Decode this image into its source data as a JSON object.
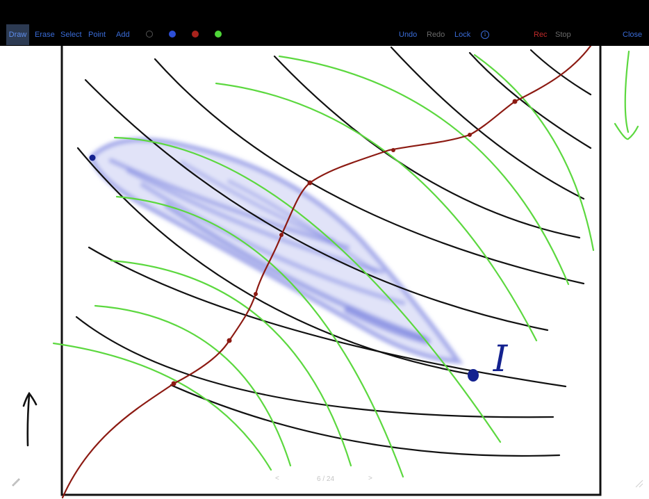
{
  "toolbar": {
    "tools": {
      "draw": "Draw",
      "erase": "Erase",
      "select": "Select",
      "point": "Point",
      "add": "Add"
    },
    "swatches": [
      {
        "name": "black",
        "color": "#111111",
        "border": "#555555"
      },
      {
        "name": "blue",
        "color": "#2d4fd6",
        "border": "#2d4fd6"
      },
      {
        "name": "red",
        "color": "#a8231c",
        "border": "#a8231c"
      },
      {
        "name": "green",
        "color": "#4fd639",
        "border": "#4fd639"
      }
    ],
    "undo": "Undo",
    "redo": "Redo",
    "lock": "Lock",
    "info_icon": "i",
    "rec": "Rec",
    "stop": "Stop",
    "close": "Close"
  },
  "slide": {
    "annotation": "I",
    "colors": {
      "black_curves": "#111111",
      "green_curves": "#5cd83f",
      "red_path": "#8c1a12",
      "blue_highlight": "#5a63d0",
      "blue_point": "#13218f"
    }
  },
  "pager": {
    "prev": "<",
    "page": "6 / 24",
    "next": ">"
  },
  "icons": {
    "pen": "pen-icon",
    "resize": "resize-handle-icon"
  }
}
